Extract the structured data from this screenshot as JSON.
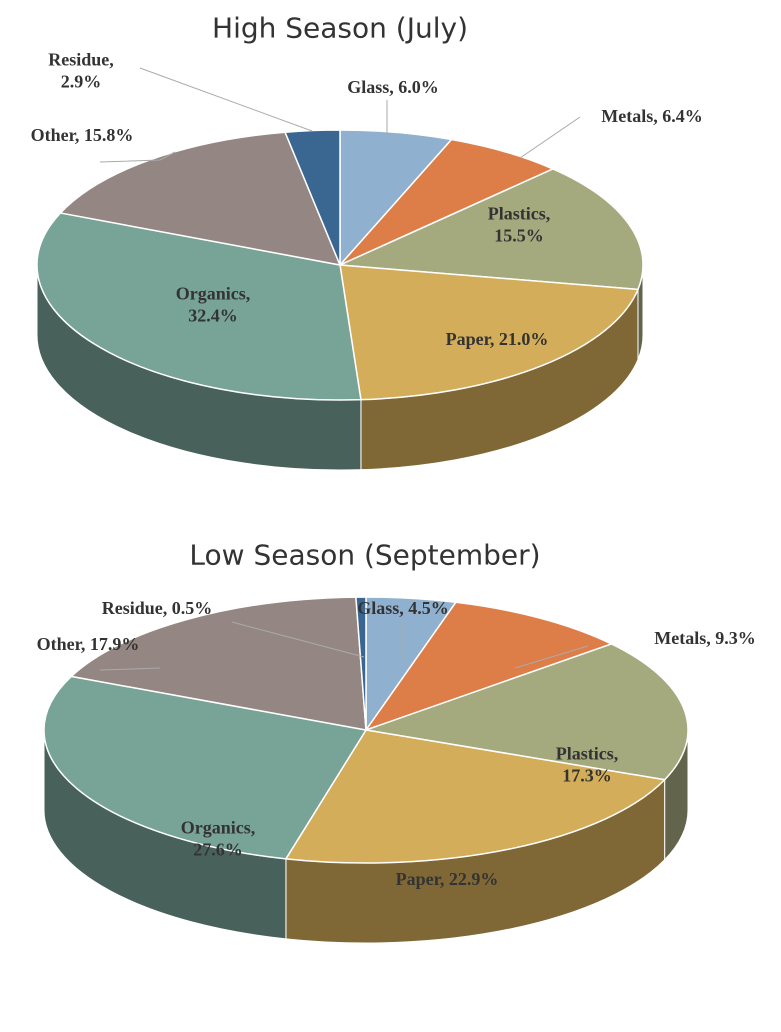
{
  "chart_data": [
    {
      "type": "pie",
      "title": "High Season (July)",
      "categories": [
        "Glass",
        "Metals",
        "Plastics",
        "Paper",
        "Organics",
        "Other",
        "Residue"
      ],
      "values": [
        6.0,
        6.4,
        15.5,
        21.0,
        32.4,
        15.8,
        2.9
      ],
      "value_labels": [
        "Glass, 6.0%",
        "Metals, 6.4%",
        "Plastics, 15.5%",
        "Paper, 21.0%",
        "Organics, 32.4%",
        "Other, 15.8%",
        "Residue, 2.9%"
      ],
      "colors": [
        "#8fb0cf",
        "#dd7d47",
        "#a4a97e",
        "#d4ad5a",
        "#78a397",
        "#948783",
        "#3a6791"
      ]
    },
    {
      "type": "pie",
      "title": "Low Season (September)",
      "categories": [
        "Glass",
        "Metals",
        "Plastics",
        "Paper",
        "Organics",
        "Other",
        "Residue"
      ],
      "values": [
        4.5,
        9.3,
        17.3,
        22.9,
        27.6,
        17.9,
        0.5
      ],
      "value_labels": [
        "Glass, 4.5%",
        "Metals, 9.3%",
        "Plastics, 17.3%",
        "Paper, 22.9%",
        "Organics, 27.6%",
        "Other, 17.9%",
        "Residue, 0.5%"
      ],
      "colors": [
        "#8fb0cf",
        "#dd7d47",
        "#a4a97e",
        "#d4ad5a",
        "#78a397",
        "#948783",
        "#3a6791"
      ]
    }
  ]
}
